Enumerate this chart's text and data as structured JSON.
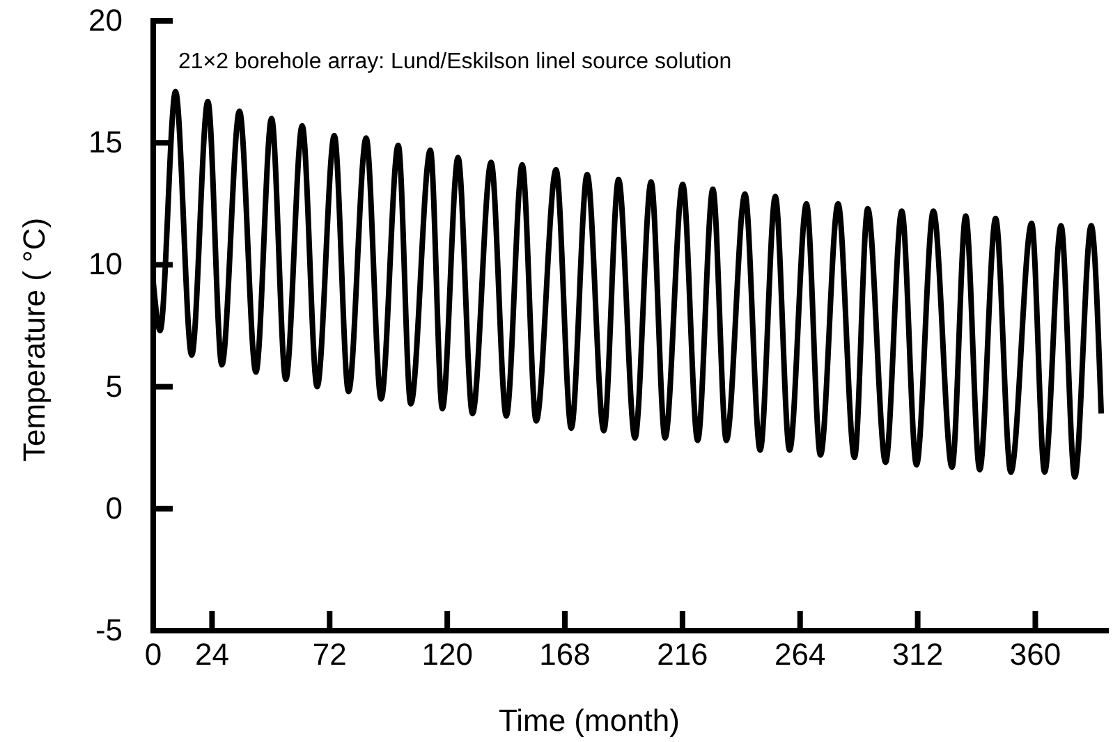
{
  "chart_data": {
    "type": "line",
    "title": "21×2 borehole array: Lund/Eskilson linel source solution",
    "xlabel": "Time (month)",
    "ylabel": "Temperature ( °C)",
    "xlim": [
      0,
      390
    ],
    "xticks": [
      0,
      24,
      72,
      120,
      168,
      216,
      264,
      312,
      360
    ],
    "ylim": [
      -5,
      20
    ],
    "yticks": [
      -5,
      0,
      5,
      10,
      15,
      20
    ],
    "marker": "none",
    "line_style": "solid",
    "series": [
      {
        "color": "#000000",
        "x": [
          0,
          2.8,
          9.1,
          15.7,
          22.3,
          28.0,
          35.2,
          41.9,
          48.3,
          54.1,
          60.8,
          66.9,
          73.9,
          79.7,
          86.9,
          93.0,
          100.0,
          105.1,
          113.1,
          118.0,
          124.4,
          130.3,
          137.9,
          144.1,
          150.6,
          156.3,
          164.4,
          170.6,
          177.1,
          183.9,
          189.9,
          196.6,
          203.2,
          208.9,
          216.1,
          222.2,
          228.4,
          233.9,
          241.5,
          247.7,
          253.9,
          259.7,
          266.6,
          272.3,
          279.5,
          286.2,
          291.6,
          298.9,
          305.5,
          311.5,
          318.4,
          326.0,
          331.6,
          337.3,
          343.8,
          350.0,
          358.5,
          363.8,
          370.5,
          376.1,
          382.8,
          386.9
        ],
        "values": [
          9.3,
          7.3,
          17.1,
          6.3,
          16.7,
          5.9,
          16.3,
          5.6,
          16.0,
          5.3,
          15.7,
          5.0,
          15.3,
          4.8,
          15.2,
          4.5,
          14.9,
          4.3,
          14.7,
          4.1,
          14.4,
          3.9,
          14.2,
          3.8,
          14.1,
          3.6,
          13.9,
          3.3,
          13.7,
          3.2,
          13.5,
          2.9,
          13.4,
          2.9,
          13.3,
          2.8,
          13.1,
          2.8,
          12.9,
          2.4,
          12.8,
          2.4,
          12.5,
          2.2,
          12.5,
          2.1,
          12.3,
          1.9,
          12.2,
          1.8,
          12.2,
          1.7,
          12.0,
          1.6,
          11.9,
          1.5,
          11.7,
          1.5,
          11.6,
          1.3,
          11.6,
          3.9
        ]
      }
    ]
  }
}
